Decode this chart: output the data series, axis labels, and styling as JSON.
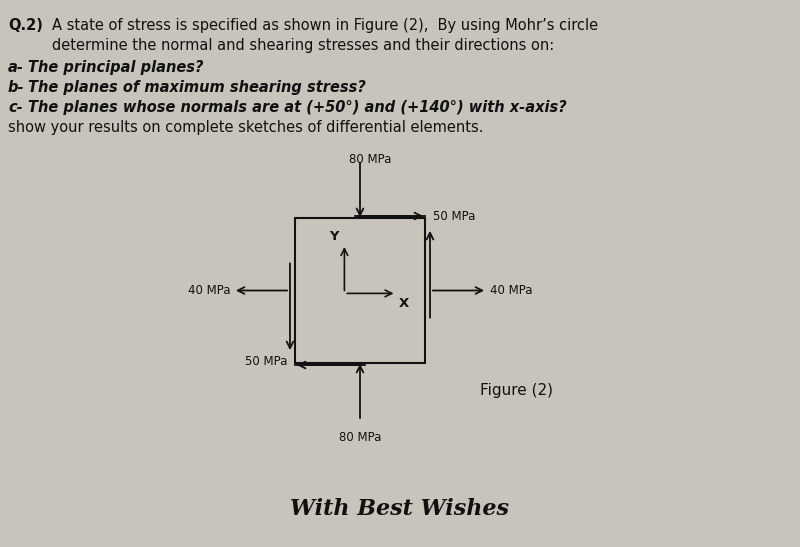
{
  "background_color": "#c8c4bc",
  "title_line1": "Q.2)  A state of stress is specified as shown in Figure (2),  By using Mohr’s circle",
  "title_line2": "        determine the normal and shearing stresses and their directions on:",
  "bullet_a": "a- The principal planes?",
  "bullet_b": "b- The planes of maximum shearing stress?",
  "bullet_c": "c- The planes whose normals are at (+50°) and (+140°) with x-axis?",
  "bullet_d": "show your results on complete sketches of differential elements.",
  "figure_label": "Figure (2)",
  "bottom_text": "With Best Wishes",
  "stress_top": "80 MPa",
  "stress_bottom": "80 MPa",
  "stress_left": "40 MPa",
  "stress_right": "40 MPa",
  "stress_shear_right": "50 MPa",
  "stress_shear_left": "50 MPa",
  "text_color": "#111111",
  "box_color": "#111111",
  "arrow_color": "#111111"
}
